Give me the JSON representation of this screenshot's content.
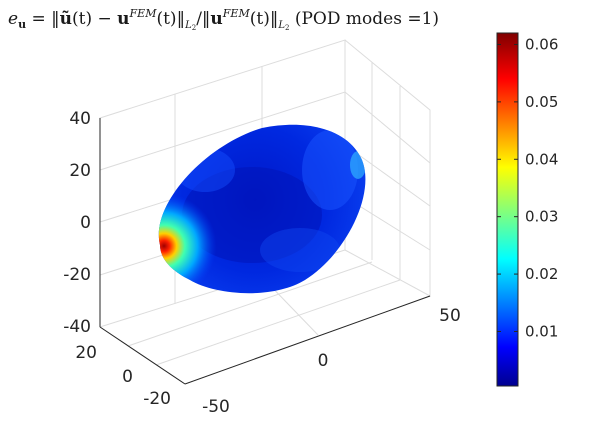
{
  "chart_data": {
    "type": "surface3d",
    "title": "e_u = ||ũ(t) − u^FEM(t)||_L2 / ||u^FEM(t)||_L2 (POD modes =1)",
    "title_parts": {
      "lhs": "e",
      "lhs_sub": "u",
      "eq": " = ‖",
      "utilde": "ũ",
      "t1": "(t) − ",
      "u": "u",
      "fem": "FEM",
      "t2": "(t)‖",
      "l2": "L",
      "l2sub": "2",
      "slash": "/‖",
      "t3": "(t)‖",
      "tail": " (POD modes =1)"
    },
    "z_ticks": [
      "40",
      "20",
      "0",
      "-20",
      "-40"
    ],
    "y_ticks": [
      "20",
      "0",
      "-20"
    ],
    "x_ticks": [
      "-50",
      "0",
      "50"
    ],
    "colorbar": {
      "colormap": "jet",
      "range": [
        0.0005,
        0.062
      ],
      "ticks": [
        "0.06",
        "0.05",
        "0.04",
        "0.03",
        "0.02",
        "0.01"
      ]
    },
    "surface": {
      "shape": "ellipsoid",
      "dominant_value": 0.005,
      "hotspot_value": 0.062,
      "hotspot_location": "left end of ellipsoid"
    },
    "grid": true,
    "colors": {
      "low": "#00008f",
      "mid": "#00ffff",
      "high": "#800000",
      "body": "#0a30e0"
    }
  }
}
